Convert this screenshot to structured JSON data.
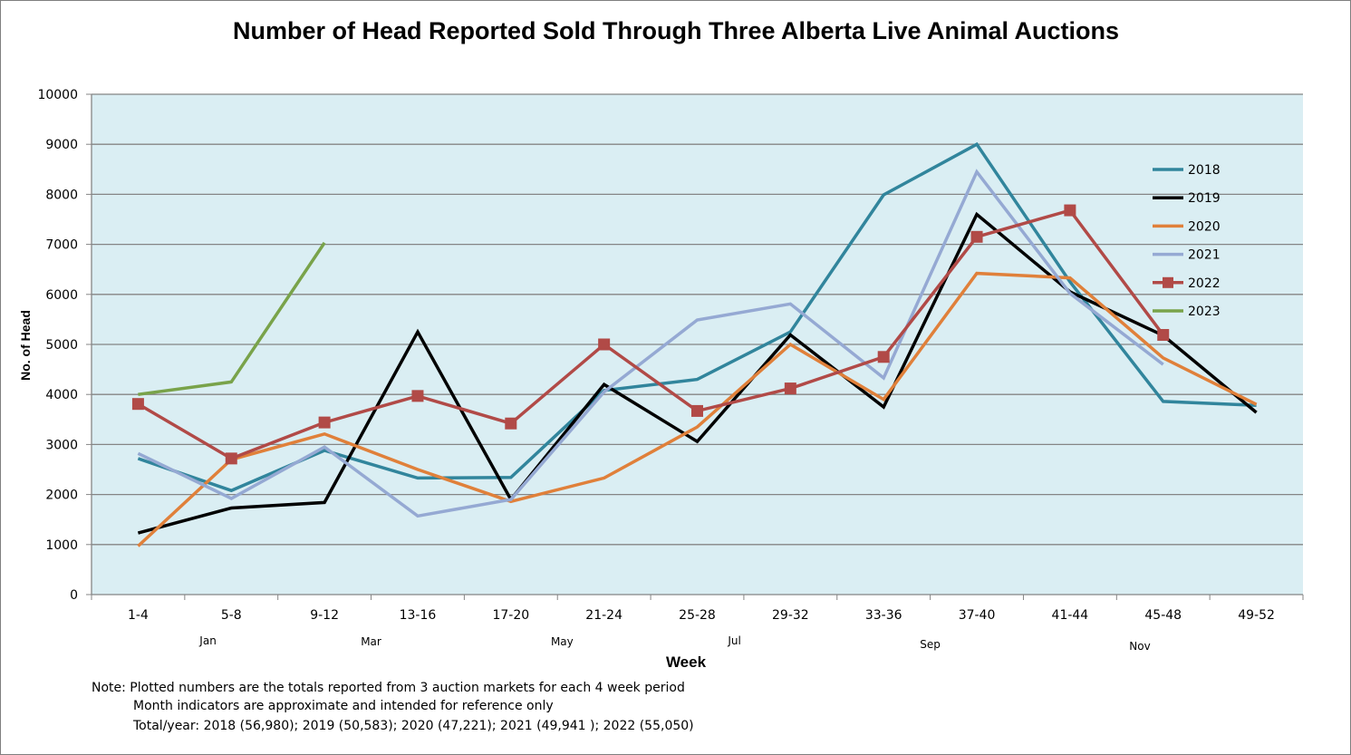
{
  "chart_data": {
    "type": "line",
    "title": "Number of Head Reported Sold Through Three Alberta Live Animal Auctions",
    "xlabel": "Week",
    "ylabel": "No. of Head",
    "ylim": [
      0,
      10000
    ],
    "yticks": [
      0,
      1000,
      2000,
      3000,
      4000,
      5000,
      6000,
      7000,
      8000,
      9000,
      10000
    ],
    "categories": [
      "1-4",
      "5-8",
      "9-12",
      "13-16",
      "17-20",
      "21-24",
      "25-28",
      "29-32",
      "33-36",
      "37-40",
      "41-44",
      "45-48",
      "49-52"
    ],
    "months": [
      {
        "label": "Jan",
        "at": 0.75
      },
      {
        "label": "Mar",
        "at": 2.5
      },
      {
        "label": "May",
        "at": 4.55
      },
      {
        "label": "Jul",
        "at": 6.4
      },
      {
        "label": "Sep",
        "at": 8.5
      },
      {
        "label": "Nov",
        "at": 10.75
      }
    ],
    "grid": true,
    "legend_position": "right",
    "series": [
      {
        "name": "2018",
        "color": "#31859c",
        "marker": "none",
        "values": [
          2720,
          2080,
          2880,
          2330,
          2340,
          4080,
          4300,
          5250,
          7990,
          9000,
          6250,
          3860,
          3780
        ]
      },
      {
        "name": "2019",
        "color": "#000000",
        "marker": "none",
        "values": [
          1230,
          1730,
          1840,
          5250,
          1900,
          4200,
          3060,
          5190,
          3750,
          7600,
          6050,
          5180,
          3640
        ]
      },
      {
        "name": "2020",
        "color": "#e0803a",
        "marker": "none",
        "values": [
          970,
          2700,
          3210,
          2500,
          1860,
          2330,
          3350,
          5000,
          3900,
          6420,
          6330,
          4730,
          3800
        ]
      },
      {
        "name": "2021",
        "color": "#95a9d3",
        "marker": "none",
        "values": [
          2820,
          1920,
          2950,
          1570,
          1900,
          4050,
          5490,
          5810,
          4330,
          8450,
          6020,
          4600,
          null
        ]
      },
      {
        "name": "2022",
        "color": "#b14a47",
        "marker": "square",
        "values": [
          3810,
          2720,
          3440,
          3970,
          3420,
          5000,
          3670,
          4120,
          4750,
          7150,
          7680,
          5190,
          null
        ]
      },
      {
        "name": "2023",
        "color": "#79a34a",
        "marker": "none",
        "values": [
          4000,
          4250,
          7030,
          null,
          null,
          null,
          null,
          null,
          null,
          null,
          null,
          null,
          null
        ]
      }
    ]
  },
  "notes": {
    "line1": "Note:  Plotted numbers are the totals reported from 3 auction markets for each 4 week period",
    "line2": "Month indicators are approximate and intended for reference only",
    "line3": "Total/year: 2018 (56,980); 2019 (50,583); 2020 (47,221); 2021 (49,941 ); 2022 (55,050)"
  },
  "colors": {
    "plot_background": "#daeef3",
    "gridline": "#858585"
  }
}
